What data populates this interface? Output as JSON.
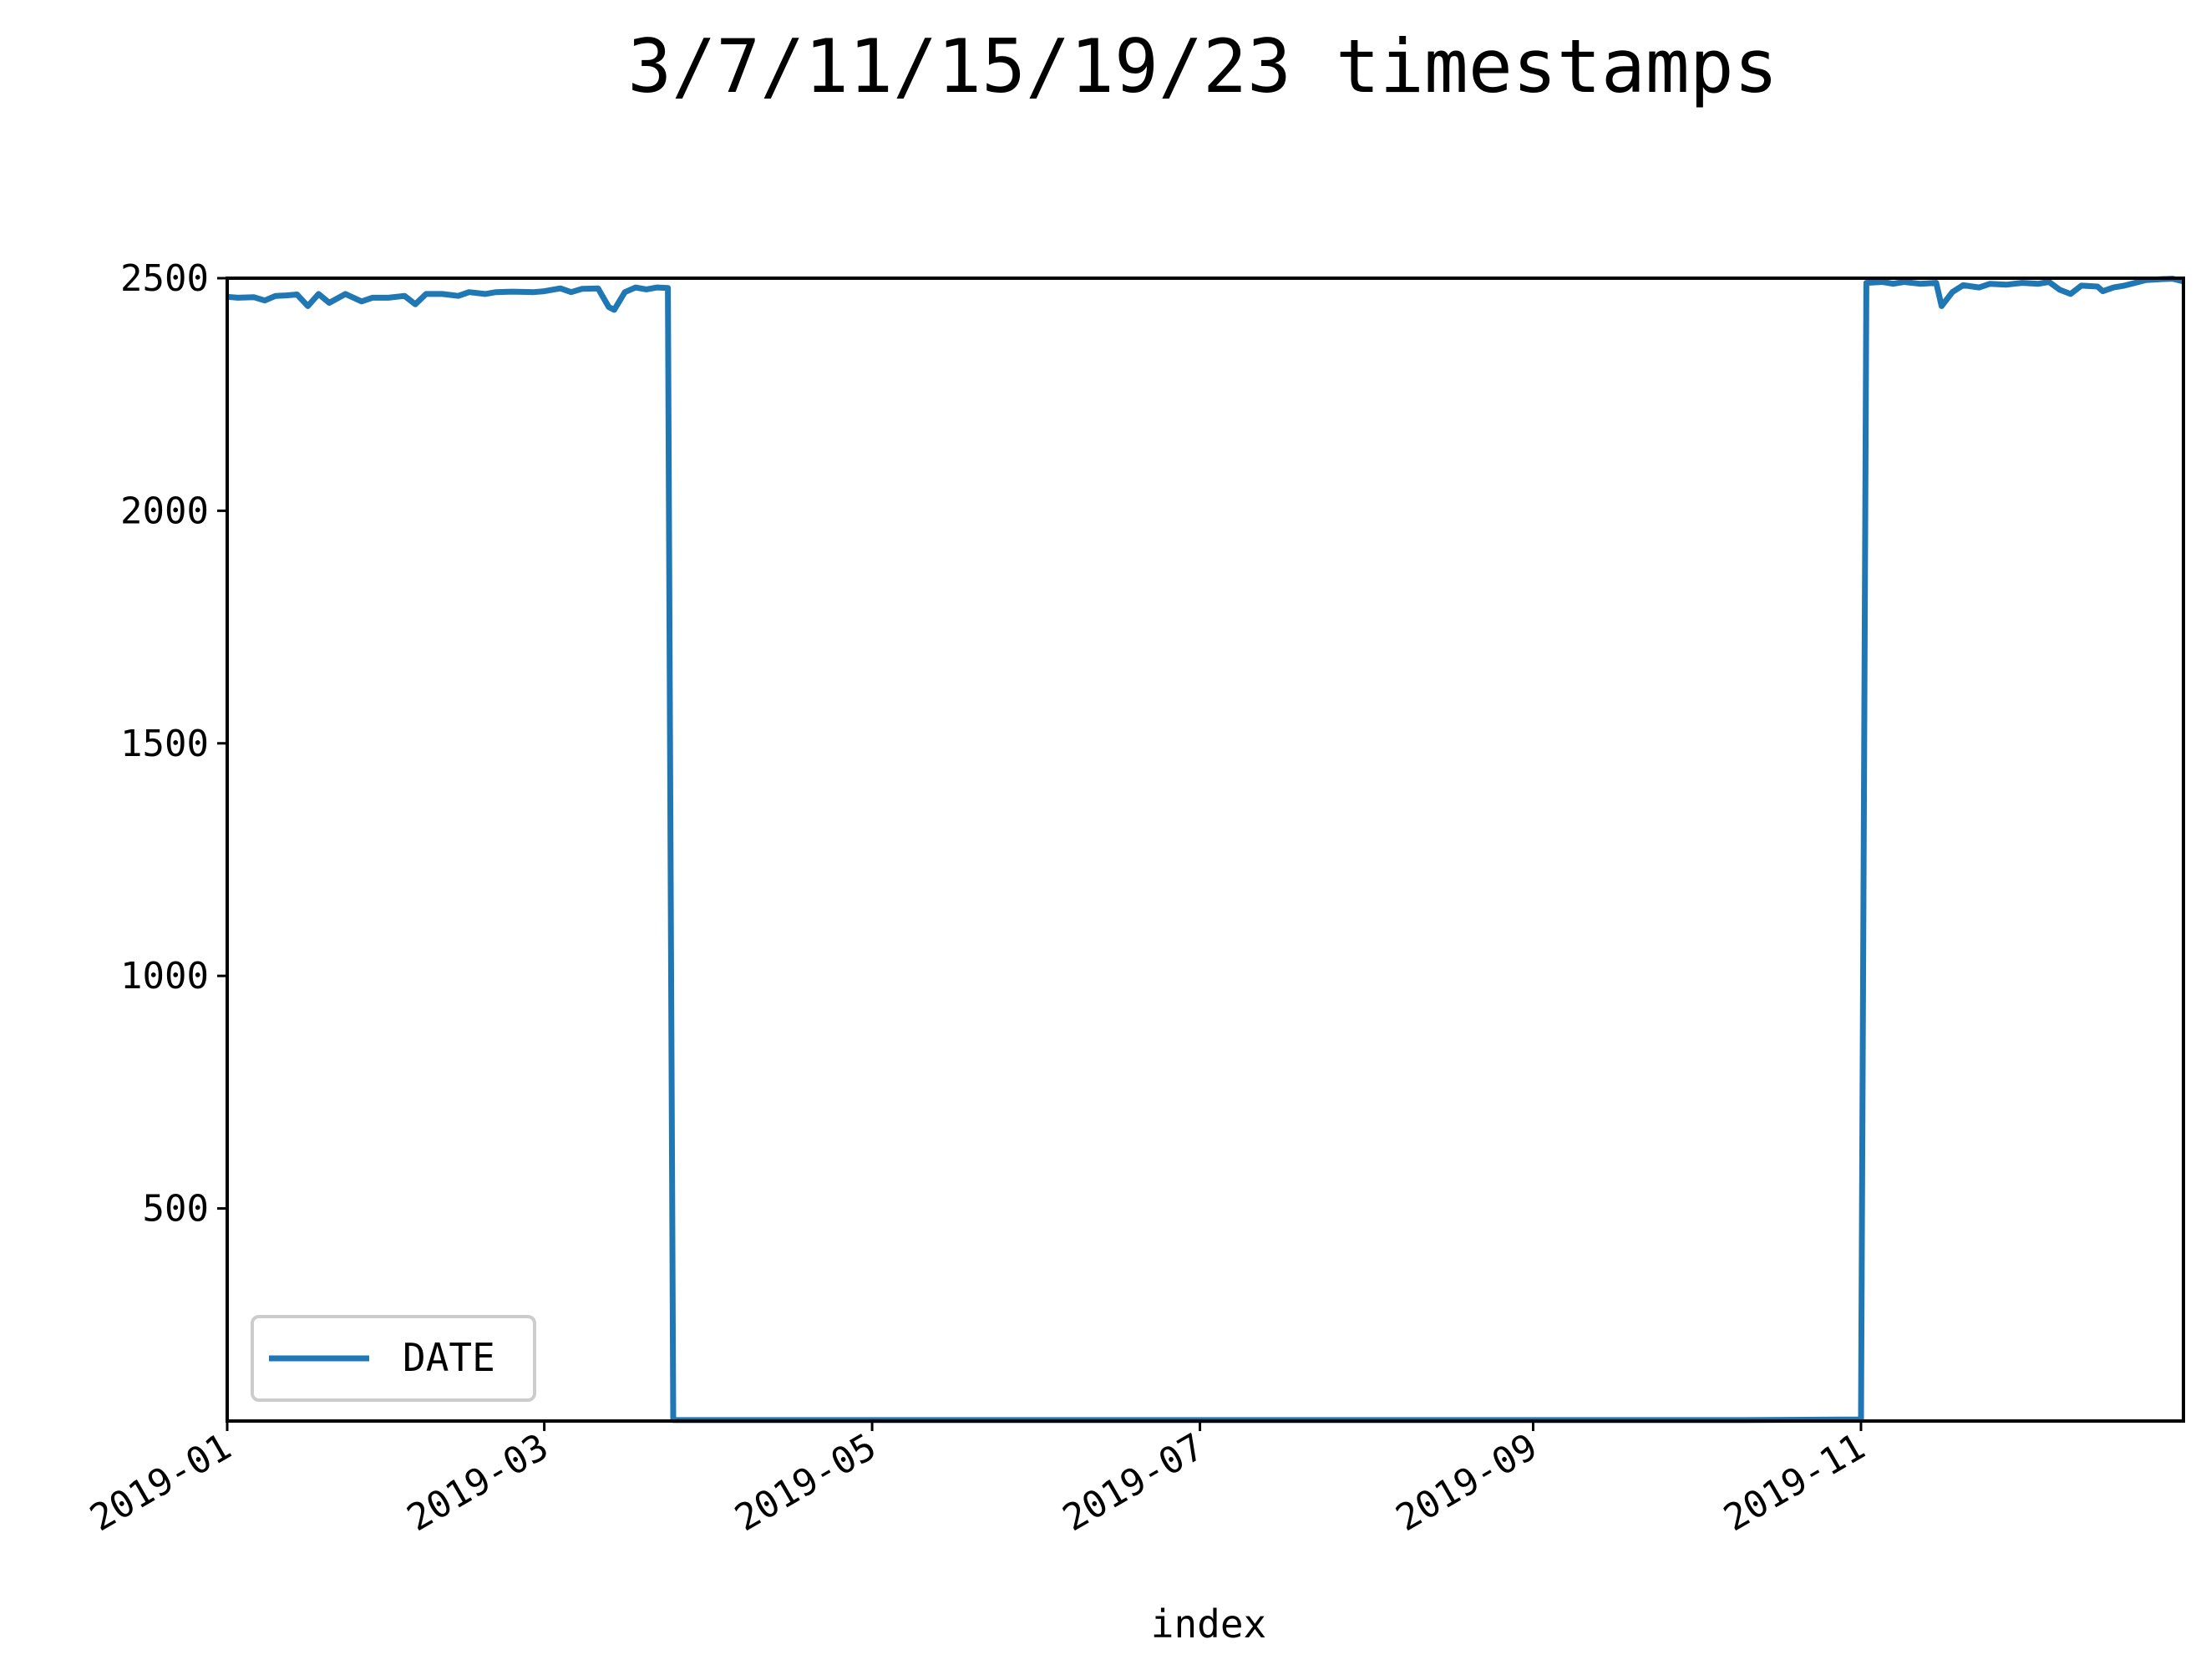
{
  "chart_data": {
    "type": "line",
    "title": "3/7/11/15/19/23 timestamps",
    "xlabel": "index",
    "ylabel": "",
    "xlim": [
      "2019-01-01",
      "2019-12-31"
    ],
    "ylim": [
      43,
      2500
    ],
    "y_ticks": [
      500,
      1000,
      1500,
      2000,
      2500
    ],
    "x_ticks": [
      "2019-01",
      "2019-03",
      "2019-05",
      "2019-07",
      "2019-09",
      "2019-11"
    ],
    "x_tick_dates": [
      "2019-01-01",
      "2019-03-01",
      "2019-05-01",
      "2019-07-01",
      "2019-09-01",
      "2019-11-01"
    ],
    "grid": false,
    "legend": {
      "position": "lower-left",
      "entries": [
        "DATE"
      ]
    },
    "colors": {
      "series": "#1f77b4",
      "axes": "#000000",
      "legend_border": "#cccccc"
    },
    "series": [
      {
        "name": "DATE",
        "points": [
          [
            "2019-01-01",
            2460
          ],
          [
            "2019-01-03",
            2458
          ],
          [
            "2019-01-06",
            2459
          ],
          [
            "2019-01-08",
            2452
          ],
          [
            "2019-01-10",
            2462
          ],
          [
            "2019-01-12",
            2463
          ],
          [
            "2019-01-14",
            2465
          ],
          [
            "2019-01-16",
            2440
          ],
          [
            "2019-01-18",
            2466
          ],
          [
            "2019-01-20",
            2447
          ],
          [
            "2019-01-23",
            2466
          ],
          [
            "2019-01-26",
            2450
          ],
          [
            "2019-01-28",
            2458
          ],
          [
            "2019-01-31",
            2458
          ],
          [
            "2019-02-03",
            2462
          ],
          [
            "2019-02-05",
            2444
          ],
          [
            "2019-02-07",
            2466
          ],
          [
            "2019-02-10",
            2466
          ],
          [
            "2019-02-13",
            2462
          ],
          [
            "2019-02-15",
            2470
          ],
          [
            "2019-02-18",
            2466
          ],
          [
            "2019-02-20",
            2470
          ],
          [
            "2019-02-23",
            2471
          ],
          [
            "2019-02-27",
            2470
          ],
          [
            "2019-03-01",
            2472
          ],
          [
            "2019-03-04",
            2478
          ],
          [
            "2019-03-06",
            2470
          ],
          [
            "2019-03-08",
            2477
          ],
          [
            "2019-03-11",
            2478
          ],
          [
            "2019-03-13",
            2438
          ],
          [
            "2019-03-14",
            2432
          ],
          [
            "2019-03-16",
            2470
          ],
          [
            "2019-03-18",
            2480
          ],
          [
            "2019-03-20",
            2476
          ],
          [
            "2019-03-22",
            2480
          ],
          [
            "2019-03-24",
            2479
          ],
          [
            "2019-03-25",
            45
          ],
          [
            "2019-04-15",
            45
          ],
          [
            "2019-05-10",
            45
          ],
          [
            "2019-06-05",
            45
          ],
          [
            "2019-07-01",
            45
          ],
          [
            "2019-07-25",
            45
          ],
          [
            "2019-08-20",
            45
          ],
          [
            "2019-09-15",
            45
          ],
          [
            "2019-10-10",
            45
          ],
          [
            "2019-10-28",
            46
          ],
          [
            "2019-11-01",
            46
          ],
          [
            "2019-11-02",
            2490
          ],
          [
            "2019-11-05",
            2492
          ],
          [
            "2019-11-07",
            2488
          ],
          [
            "2019-11-09",
            2492
          ],
          [
            "2019-11-12",
            2488
          ],
          [
            "2019-11-15",
            2490
          ],
          [
            "2019-11-16",
            2440
          ],
          [
            "2019-11-18",
            2470
          ],
          [
            "2019-11-20",
            2485
          ],
          [
            "2019-11-23",
            2480
          ],
          [
            "2019-11-25",
            2488
          ],
          [
            "2019-11-28",
            2486
          ],
          [
            "2019-12-01",
            2490
          ],
          [
            "2019-12-04",
            2488
          ],
          [
            "2019-12-06",
            2492
          ],
          [
            "2019-12-08",
            2475
          ],
          [
            "2019-12-10",
            2466
          ],
          [
            "2019-12-12",
            2484
          ],
          [
            "2019-12-15",
            2482
          ],
          [
            "2019-12-16",
            2472
          ],
          [
            "2019-12-18",
            2480
          ],
          [
            "2019-12-20",
            2484
          ],
          [
            "2019-12-22",
            2490
          ],
          [
            "2019-12-24",
            2496
          ],
          [
            "2019-12-27",
            2498
          ],
          [
            "2019-12-29",
            2499
          ],
          [
            "2019-12-31",
            2493
          ]
        ]
      }
    ]
  }
}
